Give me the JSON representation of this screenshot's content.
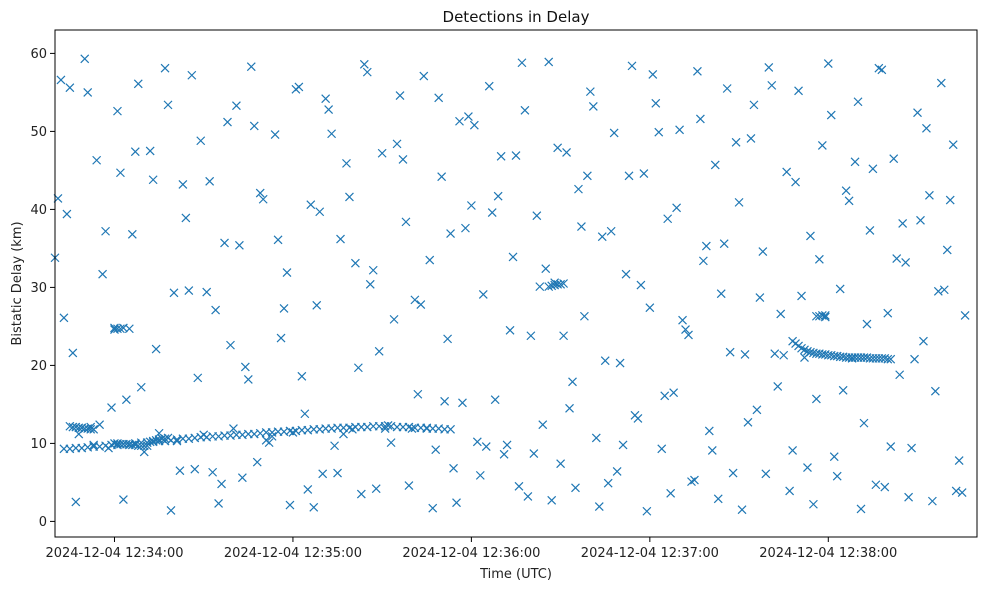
{
  "chart_data": {
    "type": "scatter",
    "title": "Detections in Delay",
    "xlabel": "Time (UTC)",
    "ylabel": "Bistatic Delay (km)",
    "marker": "x",
    "color": "#1f77b4",
    "grid": false,
    "x_ticks": [
      "2024-12-04 12:34:00",
      "2024-12-04 12:35:00",
      "2024-12-04 12:36:00",
      "2024-12-04 12:37:00",
      "2024-12-04 12:38:00"
    ],
    "y_ticks": [
      "0",
      "10",
      "20",
      "30",
      "40",
      "50",
      "60"
    ],
    "xlim": [
      "2024-12-04 12:33:40",
      "2024-12-04 12:38:50"
    ],
    "ylim": [
      -2,
      63
    ],
    "series": [
      {
        "x": [
          "12:33:40",
          "12:33:42",
          "12:33:44",
          "12:33:46",
          "12:33:48",
          "12:33:50",
          "12:33:52",
          "12:33:54",
          "12:33:56",
          "12:33:58",
          "12:34:00",
          "12:34:02",
          "12:34:04",
          "12:34:06",
          "12:34:08",
          "12:34:10",
          "12:34:12",
          "12:34:14",
          "12:34:16",
          "12:34:18",
          "12:34:20",
          "12:34:22",
          "12:34:24",
          "12:34:26",
          "12:34:28",
          "12:34:30",
          "12:34:32",
          "12:34:34",
          "12:34:36",
          "12:34:38",
          "12:34:40",
          "12:34:42",
          "12:34:44",
          "12:34:46",
          "12:34:48",
          "12:34:50",
          "12:34:52",
          "12:34:54",
          "12:34:56",
          "12:34:58",
          "12:35:00",
          "12:35:02",
          "12:35:04",
          "12:35:06",
          "12:35:08",
          "12:35:10",
          "12:35:12",
          "12:35:14",
          "12:35:16",
          "12:35:18",
          "12:35:20",
          "12:35:22",
          "12:35:24",
          "12:35:26",
          "12:35:28",
          "12:35:30",
          "12:35:32",
          "12:35:34",
          "12:35:36",
          "12:35:38",
          "12:35:40",
          "12:35:42",
          "12:35:44",
          "12:35:46",
          "12:35:48",
          "12:35:50",
          "12:35:52",
          "12:35:54",
          "12:35:56",
          "12:35:58",
          "12:36:00",
          "12:36:02",
          "12:36:04",
          "12:36:06",
          "12:36:08",
          "12:36:10",
          "12:36:12",
          "12:36:14",
          "12:36:16",
          "12:36:18",
          "12:36:20",
          "12:36:22",
          "12:36:24",
          "12:36:26",
          "12:36:28",
          "12:36:30",
          "12:36:32",
          "12:36:34",
          "12:36:36",
          "12:36:38",
          "12:36:40",
          "12:36:42",
          "12:36:44",
          "12:36:46",
          "12:36:48",
          "12:36:50",
          "12:36:52",
          "12:36:54",
          "12:36:56",
          "12:36:58",
          "12:37:00",
          "12:37:02",
          "12:37:04",
          "12:37:06",
          "12:37:08",
          "12:37:10",
          "12:37:12",
          "12:37:14",
          "12:37:16",
          "12:37:18",
          "12:37:20",
          "12:37:22",
          "12:37:24",
          "12:37:26",
          "12:37:28",
          "12:37:30",
          "12:37:32",
          "12:37:34",
          "12:37:36",
          "12:37:38",
          "12:37:40",
          "12:37:42",
          "12:37:44",
          "12:37:46",
          "12:37:48",
          "12:37:50",
          "12:37:52",
          "12:37:54",
          "12:37:56",
          "12:37:58",
          "12:38:00",
          "12:38:02",
          "12:38:04",
          "12:38:06",
          "12:38:08",
          "12:38:10",
          "12:38:12",
          "12:38:14",
          "12:38:16",
          "12:38:18",
          "12:38:20",
          "12:38:22",
          "12:38:24",
          "12:38:26",
          "12:38:28",
          "12:38:30",
          "12:38:32",
          "12:38:34",
          "12:38:36",
          "12:38:38",
          "12:38:40",
          "12:38:42",
          "12:38:44",
          "12:38:46",
          "12:33:41",
          "12:33:45",
          "12:33:49",
          "12:33:53",
          "12:33:57",
          "12:34:01",
          "12:34:05",
          "12:34:09",
          "12:34:13",
          "12:34:17",
          "12:34:21",
          "12:34:25",
          "12:34:29",
          "12:34:33",
          "12:34:37",
          "12:34:41",
          "12:34:45",
          "12:34:49",
          "12:34:53",
          "12:34:57",
          "12:35:01",
          "12:35:05",
          "12:35:09",
          "12:35:13",
          "12:35:17",
          "12:35:21",
          "12:35:25",
          "12:35:29",
          "12:35:33",
          "12:35:37",
          "12:35:41",
          "12:35:45",
          "12:35:49",
          "12:35:53",
          "12:35:57",
          "12:36:01",
          "12:36:05",
          "12:36:09",
          "12:36:13",
          "12:36:17",
          "12:36:21",
          "12:36:25",
          "12:36:29",
          "12:36:33",
          "12:36:37",
          "12:36:41",
          "12:36:45",
          "12:36:49",
          "12:36:53",
          "12:36:57",
          "12:37:01",
          "12:37:05",
          "12:37:09",
          "12:37:13",
          "12:37:17",
          "12:37:21",
          "12:37:25",
          "12:37:29",
          "12:37:33",
          "12:37:37",
          "12:37:41",
          "12:37:45",
          "12:37:49",
          "12:37:53",
          "12:37:57",
          "12:38:01",
          "12:38:05",
          "12:38:09",
          "12:38:13",
          "12:38:17",
          "12:38:21",
          "12:38:25",
          "12:38:29",
          "12:38:33",
          "12:38:37",
          "12:38:41",
          "12:38:45",
          "12:33:43",
          "12:33:51",
          "12:33:59",
          "12:34:07",
          "12:34:15",
          "12:34:23",
          "12:34:31",
          "12:34:39",
          "12:34:47",
          "12:34:55",
          "12:35:03",
          "12:35:11",
          "12:35:19",
          "12:35:27",
          "12:35:35",
          "12:35:43",
          "12:35:51",
          "12:35:59",
          "12:36:07",
          "12:36:15",
          "12:36:23",
          "12:36:31",
          "12:36:39",
          "12:36:47",
          "12:36:55",
          "12:37:03",
          "12:37:11",
          "12:37:19",
          "12:37:27",
          "12:37:35",
          "12:37:43",
          "12:37:51",
          "12:37:59",
          "12:38:07",
          "12:38:15",
          "12:38:23",
          "12:38:31",
          "12:38:39",
          "12:33:47",
          "12:33:55",
          "12:34:03",
          "12:34:11",
          "12:34:19",
          "12:34:27",
          "12:34:35",
          "12:34:43",
          "12:34:51",
          "12:34:59",
          "12:35:07",
          "12:35:15",
          "12:35:23",
          "12:35:31",
          "12:35:39",
          "12:35:47",
          "12:35:55",
          "12:36:03",
          "12:36:11",
          "12:36:19",
          "12:36:27",
          "12:36:35",
          "12:36:43",
          "12:36:51",
          "12:36:59",
          "12:37:07",
          "12:37:15",
          "12:37:23",
          "12:37:31",
          "12:37:39",
          "12:37:47",
          "12:37:55",
          "12:38:03",
          "12:38:11",
          "12:38:19",
          "12:38:27",
          "12:38:35",
          "12:38:43"
        ],
        "y": [
          33.8,
          56.6,
          39.4,
          21.6,
          11.2,
          59.3,
          12.1,
          46.3,
          31.7,
          9.4,
          24.8,
          44.7,
          15.6,
          36.8,
          56.1,
          8.9,
          47.5,
          22.1,
          10.6,
          53.4,
          29.3,
          6.5,
          38.9,
          57.2,
          18.4,
          11.1,
          43.6,
          27.1,
          4.8,
          51.2,
          11.9,
          35.4,
          19.8,
          58.3,
          7.6,
          41.3,
          10.1,
          49.6,
          23.5,
          31.9,
          11.4,
          55.7,
          13.8,
          40.6,
          27.7,
          6.1,
          52.8,
          9.7,
          36.2,
          45.9,
          11.8,
          19.7,
          58.6,
          30.4,
          4.2,
          47.2,
          12.3,
          25.9,
          54.6,
          38.4,
          11.9,
          16.3,
          57.1,
          33.5,
          9.2,
          44.2,
          23.4,
          6.8,
          51.3,
          37.6,
          40.5,
          10.2,
          29.1,
          55.8,
          15.6,
          46.8,
          9.8,
          33.9,
          4.5,
          52.7,
          23.8,
          39.2,
          12.4,
          58.9,
          30.6,
          7.4,
          47.3,
          17.9,
          42.6,
          26.3,
          55.1,
          10.7,
          36.5,
          4.9,
          49.8,
          20.3,
          31.7,
          58.4,
          13.2,
          44.6,
          27.4,
          53.6,
          9.3,
          38.8,
          16.5,
          50.2,
          24.6,
          5.1,
          57.7,
          33.4,
          11.6,
          45.7,
          29.2,
          55.5,
          6.2,
          40.9,
          21.4,
          49.1,
          14.3,
          34.6,
          58.2,
          21.5,
          26.6,
          44.8,
          9.1,
          55.2,
          21.0,
          36.6,
          15.7,
          48.2,
          58.7,
          8.3,
          29.8,
          42.4,
          20.9,
          53.8,
          12.6,
          37.3,
          4.7,
          57.9,
          26.7,
          46.5,
          18.8,
          33.2,
          9.4,
          52.4,
          23.1,
          41.8,
          16.7,
          56.2,
          34.8,
          48.3,
          7.8,
          26.4,
          41.4,
          55.6,
          12.0,
          9.8,
          37.2,
          52.6,
          24.7,
          17.2,
          43.8,
          58.1,
          10.3,
          29.6,
          48.8,
          6.3,
          35.7,
          53.3,
          18.2,
          42.1,
          10.9,
          27.3,
          55.4,
          4.1,
          39.7,
          49.7,
          11.2,
          33.1,
          57.6,
          21.8,
          10.1,
          46.4,
          28.4,
          12.0,
          54.3,
          36.9,
          15.2,
          50.8,
          9.6,
          41.7,
          24.5,
          58.8,
          8.7,
          32.4,
          47.9,
          14.5,
          37.8,
          53.2,
          20.6,
          6.4,
          44.3,
          30.3,
          57.3,
          16.1,
          40.2,
          23.9,
          51.6,
          9.1,
          35.6,
          48.6,
          12.7,
          28.7,
          55.9,
          21.3,
          43.5,
          6.9,
          33.6,
          52.1,
          16.8,
          46.1,
          25.3,
          58.1,
          9.6,
          38.2,
          20.8,
          50.4,
          29.5,
          41.2,
          3.7,
          26.1,
          55.0,
          14.6,
          47.4,
          11.3,
          43.2,
          29.4,
          22.6,
          50.7,
          36.1,
          18.6,
          54.2,
          41.6,
          32.2,
          48.4,
          27.8,
          15.4,
          51.9,
          39.6,
          46.9,
          30.1,
          23.8,
          44.3,
          37.2,
          13.6,
          49.9,
          25.8,
          35.3,
          21.7,
          53.4,
          17.3,
          28.9,
          26.2,
          41.1,
          45.2,
          33.7,
          38.6,
          29.7,
          2.5,
          12.4,
          2.8,
          9.7,
          1.4,
          6.7,
          2.3,
          5.6,
          10.4,
          2.1,
          1.8,
          6.2,
          3.5,
          11.9,
          4.6,
          1.7,
          2.4,
          5.9,
          8.6,
          3.2,
          2.7,
          4.3,
          1.9,
          9.8,
          1.3,
          3.6,
          5.3,
          2.9,
          1.5,
          6.1,
          3.9,
          2.2,
          5.8,
          1.6,
          4.4,
          3.1,
          2.6,
          3.9
        ],
        "marker": "x"
      },
      {
        "name": "",
        "x": [
          "12:33:43",
          "12:33:45",
          "12:33:47",
          "12:33:49",
          "12:33:51",
          "12:33:53",
          "12:33:55",
          "12:33:57",
          "12:33:59",
          "12:34:01",
          "12:34:03",
          "12:34:05",
          "12:34:07",
          "12:34:09",
          "12:34:11",
          "12:34:13",
          "12:34:15",
          "12:34:17",
          "12:34:19",
          "12:34:21",
          "12:34:23",
          "12:34:25",
          "12:34:27",
          "12:34:29",
          "12:34:31",
          "12:34:33",
          "12:34:35",
          "12:34:37",
          "12:34:39",
          "12:34:41",
          "12:34:43",
          "12:34:45",
          "12:34:47",
          "12:34:49",
          "12:34:51",
          "12:34:53",
          "12:34:55",
          "12:34:57",
          "12:34:59",
          "12:35:01",
          "12:35:03",
          "12:35:05",
          "12:35:07",
          "12:35:09",
          "12:35:11",
          "12:35:13",
          "12:35:15",
          "12:35:17",
          "12:35:19",
          "12:35:21",
          "12:35:23",
          "12:35:25",
          "12:35:27",
          "12:35:29",
          "12:35:31",
          "12:35:33",
          "12:35:35",
          "12:35:37",
          "12:35:39",
          "12:35:41",
          "12:35:43",
          "12:35:45",
          "12:35:47",
          "12:35:49",
          "12:35:51",
          "12:35:53"
        ],
        "y": [
          9.3,
          9.3,
          9.4,
          9.4,
          9.5,
          9.6,
          9.6,
          9.7,
          9.8,
          9.8,
          9.9,
          9.9,
          10.0,
          10.1,
          10.1,
          10.2,
          10.3,
          10.3,
          10.4,
          10.5,
          10.6,
          10.6,
          10.7,
          10.8,
          10.8,
          10.9,
          10.9,
          11.0,
          11.0,
          11.1,
          11.1,
          11.2,
          11.2,
          11.3,
          11.4,
          11.4,
          11.5,
          11.5,
          11.6,
          11.6,
          11.7,
          11.7,
          11.8,
          11.8,
          11.9,
          11.9,
          12.0,
          12.0,
          12.0,
          12.1,
          12.1,
          12.1,
          12.2,
          12.2,
          12.2,
          12.2,
          12.1,
          12.1,
          12.1,
          12.0,
          12.0,
          11.9,
          11.9,
          11.9,
          11.8,
          11.8
        ],
        "marker": "x"
      },
      {
        "name": "",
        "x": [
          "12:33:45",
          "12:33:46",
          "12:33:47",
          "12:33:48",
          "12:33:49",
          "12:33:50",
          "12:33:51",
          "12:33:52",
          "12:33:53",
          "12:34:00",
          "12:34:01",
          "12:34:02",
          "12:34:03",
          "12:34:04",
          "12:34:05",
          "12:34:06",
          "12:34:07",
          "12:34:08",
          "12:34:09",
          "12:34:10",
          "12:34:11",
          "12:34:12",
          "12:34:13",
          "12:34:14",
          "12:34:15",
          "12:34:16",
          "12:34:17",
          "12:34:18"
        ],
        "y": [
          12.2,
          12.1,
          12.1,
          12.0,
          12.0,
          11.9,
          11.9,
          11.8,
          11.8,
          10.0,
          10.0,
          9.9,
          9.9,
          9.9,
          9.8,
          9.8,
          9.8,
          9.7,
          9.7,
          9.7,
          10.1,
          10.2,
          10.3,
          10.4,
          10.5,
          10.6,
          10.6,
          10.7
        ],
        "marker": "x"
      },
      {
        "name": "",
        "x": [
          "12:37:48",
          "12:37:49",
          "12:37:50",
          "12:37:51",
          "12:37:52",
          "12:37:53",
          "12:37:54",
          "12:37:55",
          "12:37:56",
          "12:37:57",
          "12:37:58",
          "12:37:59",
          "12:38:00",
          "12:38:01",
          "12:38:02",
          "12:38:03",
          "12:38:04",
          "12:38:05",
          "12:38:06",
          "12:38:07",
          "12:38:08",
          "12:38:09",
          "12:38:10",
          "12:38:11",
          "12:38:12",
          "12:38:13",
          "12:38:14",
          "12:38:15",
          "12:38:16",
          "12:38:17",
          "12:38:18",
          "12:38:19",
          "12:38:20",
          "12:38:21"
        ],
        "y": [
          23.1,
          22.8,
          22.5,
          22.2,
          22.0,
          21.8,
          21.7,
          21.6,
          21.5,
          21.5,
          21.4,
          21.4,
          21.3,
          21.3,
          21.2,
          21.2,
          21.1,
          21.1,
          21.0,
          21.0,
          21.0,
          21.0,
          21.0,
          21.0,
          21.0,
          21.0,
          20.9,
          20.9,
          20.9,
          20.9,
          20.9,
          20.9,
          20.8,
          20.8
        ],
        "marker": "x"
      },
      {
        "name": "",
        "x": [
          "12:37:56",
          "12:37:57",
          "12:37:58",
          "12:37:59",
          "12:34:00",
          "12:34:01",
          "12:34:02",
          "12:34:03",
          "12:36:26",
          "12:36:27",
          "12:36:28",
          "12:36:29",
          "12:36:30",
          "12:36:31"
        ],
        "y": [
          26.3,
          26.3,
          26.4,
          26.4,
          24.6,
          24.7,
          24.7,
          24.8,
          30.1,
          30.2,
          30.3,
          30.4,
          30.4,
          30.5
        ],
        "marker": "x"
      }
    ]
  }
}
